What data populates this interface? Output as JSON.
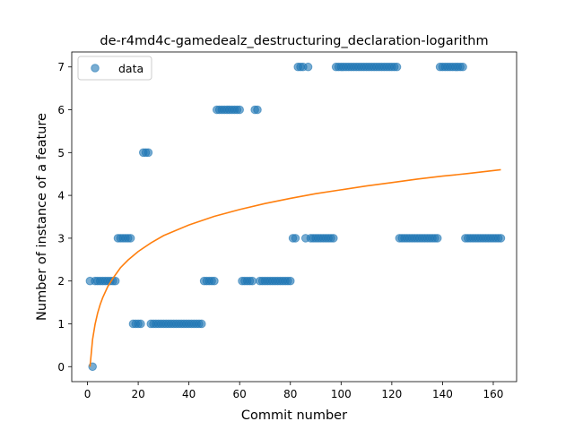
{
  "chart_data": {
    "type": "scatter",
    "title": "de-r4md4c-gamedealz_destructuring_declaration-logarithm",
    "xlabel": "Commit number",
    "ylabel": "Number of instance of a feature",
    "xlim": [
      -6.2,
      169.2
    ],
    "ylim": [
      -0.35,
      7.35
    ],
    "xticks": [
      0,
      20,
      40,
      60,
      80,
      100,
      120,
      140,
      160
    ],
    "yticks": [
      0,
      1,
      2,
      3,
      4,
      5,
      6,
      7
    ],
    "grid": false,
    "legend": {
      "position": "upper-left",
      "entries": [
        "data"
      ]
    },
    "series": [
      {
        "name": "data",
        "kind": "scatter",
        "color": "#1f77b4",
        "points": [
          [
            1,
            2
          ],
          [
            2,
            0
          ],
          [
            3,
            2
          ],
          [
            4,
            2
          ],
          [
            5,
            2
          ],
          [
            6,
            2
          ],
          [
            7,
            2
          ],
          [
            8,
            2
          ],
          [
            9,
            2
          ],
          [
            10,
            2
          ],
          [
            11,
            2
          ],
          [
            12,
            3
          ],
          [
            13,
            3
          ],
          [
            14,
            3
          ],
          [
            15,
            3
          ],
          [
            16,
            3
          ],
          [
            17,
            3
          ],
          [
            18,
            1
          ],
          [
            19,
            1
          ],
          [
            20,
            1
          ],
          [
            21,
            1
          ],
          [
            22,
            5
          ],
          [
            23,
            5
          ],
          [
            24,
            5
          ],
          [
            25,
            1
          ],
          [
            26,
            1
          ],
          [
            27,
            1
          ],
          [
            28,
            1
          ],
          [
            29,
            1
          ],
          [
            30,
            1
          ],
          [
            31,
            1
          ],
          [
            32,
            1
          ],
          [
            33,
            1
          ],
          [
            34,
            1
          ],
          [
            35,
            1
          ],
          [
            36,
            1
          ],
          [
            37,
            1
          ],
          [
            38,
            1
          ],
          [
            39,
            1
          ],
          [
            40,
            1
          ],
          [
            41,
            1
          ],
          [
            42,
            1
          ],
          [
            43,
            1
          ],
          [
            44,
            1
          ],
          [
            45,
            1
          ],
          [
            46,
            2
          ],
          [
            47,
            2
          ],
          [
            48,
            2
          ],
          [
            49,
            2
          ],
          [
            50,
            2
          ],
          [
            51,
            6
          ],
          [
            52,
            6
          ],
          [
            53,
            6
          ],
          [
            54,
            6
          ],
          [
            55,
            6
          ],
          [
            56,
            6
          ],
          [
            57,
            6
          ],
          [
            58,
            6
          ],
          [
            59,
            6
          ],
          [
            60,
            6
          ],
          [
            61,
            2
          ],
          [
            62,
            2
          ],
          [
            63,
            2
          ],
          [
            64,
            2
          ],
          [
            65,
            2
          ],
          [
            66,
            6
          ],
          [
            67,
            6
          ],
          [
            68,
            2
          ],
          [
            69,
            2
          ],
          [
            70,
            2
          ],
          [
            71,
            2
          ],
          [
            72,
            2
          ],
          [
            73,
            2
          ],
          [
            74,
            2
          ],
          [
            75,
            2
          ],
          [
            76,
            2
          ],
          [
            77,
            2
          ],
          [
            78,
            2
          ],
          [
            79,
            2
          ],
          [
            80,
            2
          ],
          [
            81,
            3
          ],
          [
            82,
            3
          ],
          [
            83,
            7
          ],
          [
            84,
            7
          ],
          [
            85,
            7
          ],
          [
            86,
            3
          ],
          [
            87,
            7
          ],
          [
            88,
            3
          ],
          [
            89,
            3
          ],
          [
            90,
            3
          ],
          [
            91,
            3
          ],
          [
            92,
            3
          ],
          [
            93,
            3
          ],
          [
            94,
            3
          ],
          [
            95,
            3
          ],
          [
            96,
            3
          ],
          [
            97,
            3
          ],
          [
            98,
            7
          ],
          [
            99,
            7
          ],
          [
            100,
            7
          ],
          [
            101,
            7
          ],
          [
            102,
            7
          ],
          [
            103,
            7
          ],
          [
            104,
            7
          ],
          [
            105,
            7
          ],
          [
            106,
            7
          ],
          [
            107,
            7
          ],
          [
            108,
            7
          ],
          [
            109,
            7
          ],
          [
            110,
            7
          ],
          [
            111,
            7
          ],
          [
            112,
            7
          ],
          [
            113,
            7
          ],
          [
            114,
            7
          ],
          [
            115,
            7
          ],
          [
            116,
            7
          ],
          [
            117,
            7
          ],
          [
            118,
            7
          ],
          [
            119,
            7
          ],
          [
            120,
            7
          ],
          [
            121,
            7
          ],
          [
            122,
            7
          ],
          [
            123,
            3
          ],
          [
            124,
            3
          ],
          [
            125,
            3
          ],
          [
            126,
            3
          ],
          [
            127,
            3
          ],
          [
            128,
            3
          ],
          [
            129,
            3
          ],
          [
            130,
            3
          ],
          [
            131,
            3
          ],
          [
            132,
            3
          ],
          [
            133,
            3
          ],
          [
            134,
            3
          ],
          [
            135,
            3
          ],
          [
            136,
            3
          ],
          [
            137,
            3
          ],
          [
            138,
            3
          ],
          [
            139,
            7
          ],
          [
            140,
            7
          ],
          [
            141,
            7
          ],
          [
            142,
            7
          ],
          [
            143,
            7
          ],
          [
            144,
            7
          ],
          [
            145,
            7
          ],
          [
            146,
            7
          ],
          [
            147,
            7
          ],
          [
            148,
            7
          ],
          [
            149,
            3
          ],
          [
            150,
            3
          ],
          [
            151,
            3
          ],
          [
            152,
            3
          ],
          [
            153,
            3
          ],
          [
            154,
            3
          ],
          [
            155,
            3
          ],
          [
            156,
            3
          ],
          [
            157,
            3
          ],
          [
            158,
            3
          ],
          [
            159,
            3
          ],
          [
            160,
            3
          ],
          [
            161,
            3
          ],
          [
            162,
            3
          ],
          [
            163,
            3
          ]
        ]
      },
      {
        "kind": "line",
        "color": "#ff7f0e",
        "fit": "logarithmic",
        "x": [
          1,
          2,
          3,
          4,
          5,
          6,
          8,
          10,
          13,
          16,
          20,
          25,
          30,
          40,
          50,
          60,
          70,
          80,
          90,
          100,
          110,
          120,
          130,
          140,
          150,
          163
        ],
        "y": [
          0.0,
          0.63,
          0.99,
          1.25,
          1.45,
          1.61,
          1.87,
          2.06,
          2.31,
          2.49,
          2.69,
          2.89,
          3.06,
          3.31,
          3.51,
          3.67,
          3.81,
          3.93,
          4.04,
          4.13,
          4.22,
          4.3,
          4.38,
          4.45,
          4.51,
          4.6
        ]
      }
    ]
  }
}
